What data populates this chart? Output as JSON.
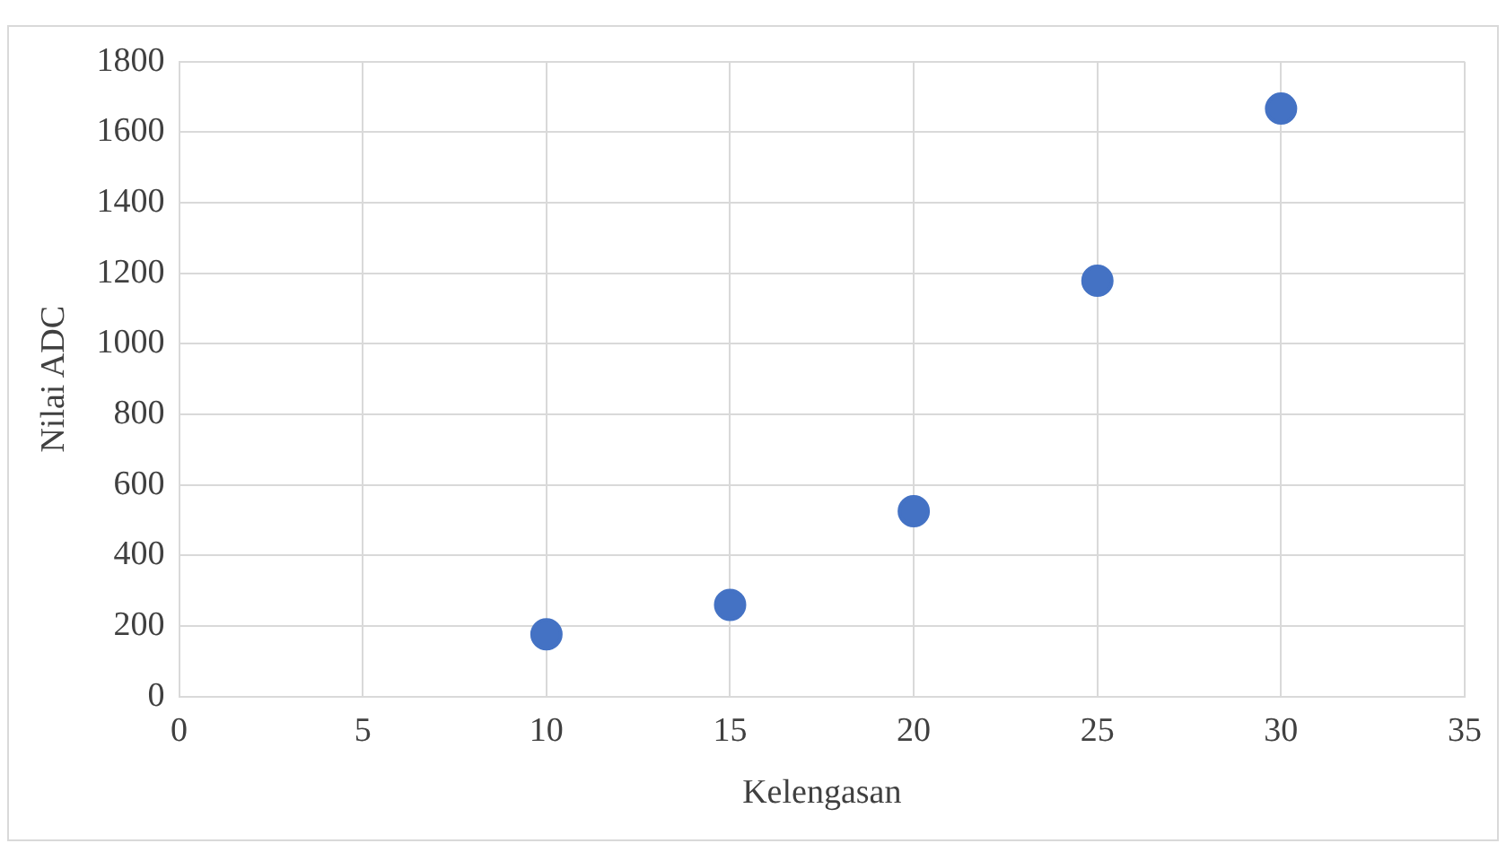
{
  "chart_data": {
    "type": "scatter",
    "xlabel": "Kelengasan",
    "ylabel": "Nilai ADC",
    "x": [
      10,
      15,
      20,
      25,
      30
    ],
    "series": [
      {
        "color": "#4472c4",
        "values": [
          177,
          260,
          526,
          1179,
          1667
        ]
      }
    ],
    "xlim": [
      0,
      35
    ],
    "xticks": [
      0,
      5,
      10,
      15,
      20,
      25,
      30,
      35
    ],
    "ylim": [
      0,
      1800
    ],
    "yticks": [
      0,
      200,
      400,
      600,
      800,
      1000,
      1200,
      1400,
      1600,
      1800
    ],
    "grid": true,
    "marker": "circle",
    "legend": false
  }
}
